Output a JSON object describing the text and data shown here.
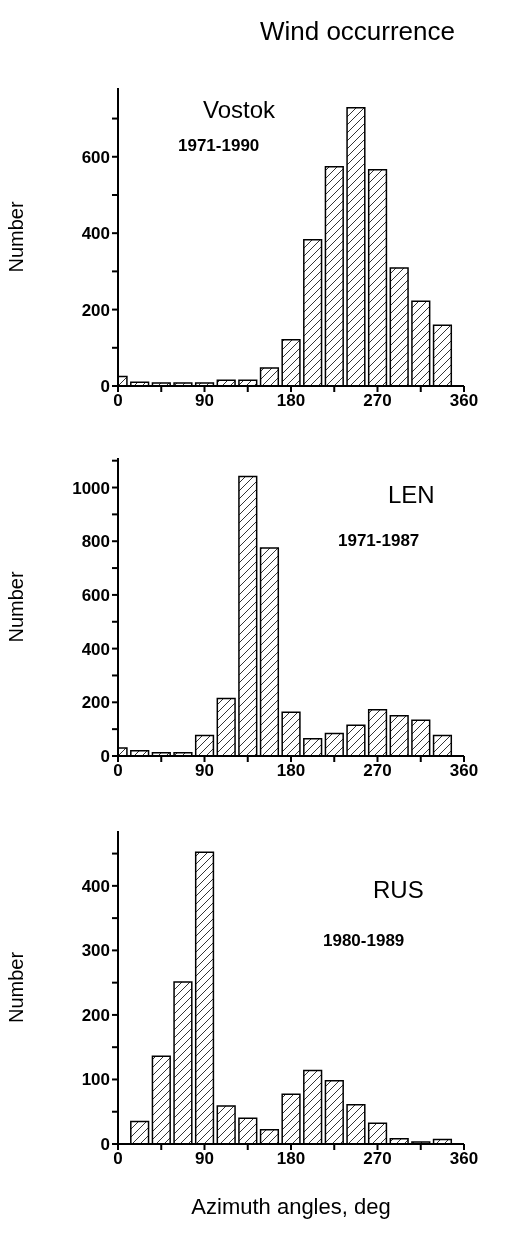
{
  "chart_data": [
    {
      "type": "bar",
      "title": "Vostok",
      "subtitle": "1971-1990",
      "annotations": [
        "Wind occurrence"
      ],
      "ylabel": "Number",
      "x": [
        0,
        22.5,
        45,
        67.5,
        90,
        112.5,
        135,
        157.5,
        180,
        202.5,
        225,
        247.5,
        270,
        292.5,
        315,
        337.5
      ],
      "values": [
        25,
        10,
        8,
        8,
        8,
        15,
        15,
        47,
        121,
        383,
        574,
        728,
        566,
        309,
        222,
        159
      ],
      "xlim": [
        0,
        360
      ],
      "xticks": [
        0,
        {
          "value": 45,
          "label": null
        },
        90,
        {
          "value": 135,
          "label": null
        },
        180,
        {
          "value": 225,
          "label": null
        },
        270,
        {
          "value": 315,
          "label": null
        },
        360
      ],
      "ylim": [
        0,
        780
      ],
      "yticks": [
        0,
        {
          "value": 100,
          "label": null
        },
        200,
        {
          "value": 300,
          "label": null
        },
        400,
        {
          "value": 500,
          "label": null
        },
        600,
        {
          "value": 700,
          "label": null
        }
      ]
    },
    {
      "type": "bar",
      "title": "LEN",
      "subtitle": "1971-1987",
      "ylabel": "Number",
      "x": [
        0,
        22.5,
        45,
        67.5,
        90,
        112.5,
        135,
        157.5,
        180,
        202.5,
        225,
        247.5,
        270,
        292.5,
        315,
        337.5
      ],
      "values": [
        30,
        20,
        12,
        12,
        76,
        214,
        1041,
        775,
        163,
        64,
        84,
        115,
        172,
        150,
        133,
        76
      ],
      "xlim": [
        0,
        360
      ],
      "xticks": [
        0,
        {
          "value": 45,
          "label": null
        },
        90,
        {
          "value": 135,
          "label": null
        },
        180,
        {
          "value": 225,
          "label": null
        },
        270,
        {
          "value": 315,
          "label": null
        },
        360
      ],
      "ylim": [
        0,
        1110
      ],
      "yticks": [
        0,
        {
          "value": 100,
          "label": null
        },
        200,
        {
          "value": 300,
          "label": null
        },
        400,
        {
          "value": 500,
          "label": null
        },
        600,
        {
          "value": 700,
          "label": null
        },
        800,
        {
          "value": 900,
          "label": null
        },
        1000,
        {
          "value": 1100,
          "label": null
        }
      ]
    },
    {
      "type": "bar",
      "title": "RUS",
      "subtitle": "1980-1989",
      "ylabel": "Number",
      "xlabel": "Azimuth angles, deg",
      "x": [
        0,
        22.5,
        45,
        67.5,
        90,
        112.5,
        135,
        157.5,
        180,
        202.5,
        225,
        247.5,
        270,
        292.5,
        315,
        337.5
      ],
      "values": [
        0,
        35,
        136,
        251,
        452,
        59,
        40,
        22,
        77,
        114,
        98,
        61,
        32,
        8,
        3,
        7
      ],
      "xlim": [
        0,
        360
      ],
      "xticks": [
        0,
        {
          "value": 45,
          "label": null
        },
        90,
        {
          "value": 135,
          "label": null
        },
        180,
        {
          "value": 225,
          "label": null
        },
        270,
        {
          "value": 315,
          "label": null
        },
        360
      ],
      "ylim": [
        0,
        485
      ],
      "yticks": [
        0,
        {
          "value": 50,
          "label": null
        },
        100,
        {
          "value": 150,
          "label": null
        },
        200,
        {
          "value": 250,
          "label": null
        },
        300,
        {
          "value": 350,
          "label": null
        },
        400,
        {
          "value": 450,
          "label": null
        }
      ]
    }
  ]
}
